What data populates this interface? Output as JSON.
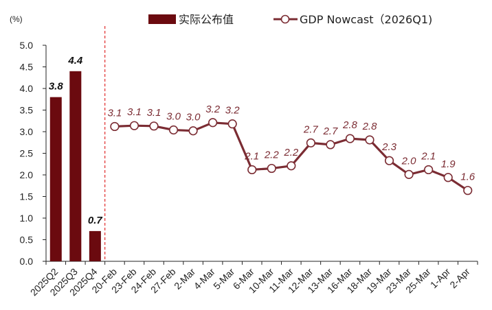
{
  "chart_data": {
    "type": "bar+line",
    "unit_label": "(%)",
    "ylim": [
      0,
      5
    ],
    "y_ticks": [
      "0.0",
      "0.5",
      "1.0",
      "1.5",
      "2.0",
      "2.5",
      "3.0",
      "3.5",
      "4.0",
      "4.5",
      "5.0"
    ],
    "categories": [
      "2025Q2",
      "2025Q3",
      "2025Q4",
      "20-Feb",
      "23-Feb",
      "24-Feb",
      "27-Feb",
      "2-Mar",
      "4-Mar",
      "5-Mar",
      "6-Mar",
      "10-Mar",
      "11-Mar",
      "12-Mar",
      "13-Mar",
      "16-Mar",
      "18-Mar",
      "19-Mar",
      "23-Mar",
      "25-Mar",
      "1-Apr",
      "2-Apr"
    ],
    "bar_series": {
      "name": "实际公布值",
      "color": "#6b0a0f",
      "values": [
        3.8,
        4.4,
        0.7
      ],
      "labels": [
        "3.8",
        "4.4",
        "0.7"
      ]
    },
    "line_series": {
      "name": "GDP Nowcast（2026Q1)",
      "color": "#7b2c33",
      "values": [
        3.12,
        3.14,
        3.13,
        3.04,
        3.02,
        3.21,
        3.18,
        2.12,
        2.15,
        2.21,
        2.74,
        2.7,
        2.84,
        2.81,
        2.33,
        2.01,
        2.12,
        1.94,
        1.64
      ],
      "labels": [
        "3.1",
        "3.1",
        "3.1",
        "3.0",
        "3.0",
        "3.2",
        "3.2",
        "2.1",
        "2.2",
        "2.2",
        "2.7",
        "2.7",
        "2.8",
        "2.8",
        "2.3",
        "2.0",
        "2.1",
        "1.9",
        "1.6"
      ]
    },
    "separator_after_index": 2,
    "separator_color": "#e23a3a"
  }
}
